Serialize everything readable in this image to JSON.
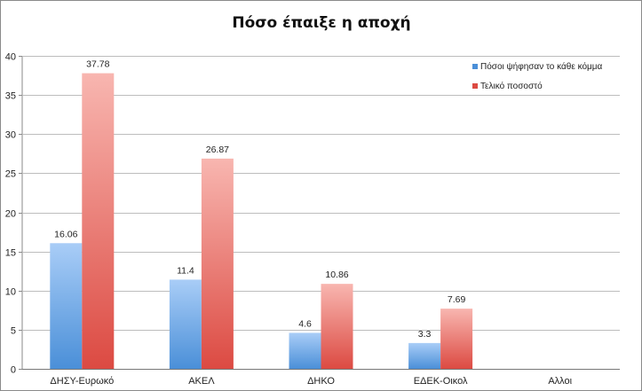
{
  "chart_data": {
    "type": "bar",
    "title": "Πόσο έπαιξε η αποχή",
    "categories": [
      "ΔΗΣΥ-Ευρωκό",
      "ΑΚΕΛ",
      "ΔΗΚΟ",
      "ΕΔΕΚ-Οικολ",
      "Αλλοι"
    ],
    "series": [
      {
        "name": "Πόσοι ψήφησαν το κάθε κόμμα",
        "values": [
          16.06,
          11.4,
          4.6,
          3.3,
          null
        ],
        "labels": [
          "16.06",
          "11.4",
          "4.6",
          "3.3",
          ""
        ],
        "color_light": "#a9cdf7",
        "color_dark": "#4a8fd8"
      },
      {
        "name": "Τελικό ποσοστό",
        "values": [
          37.78,
          26.87,
          10.86,
          7.69,
          null
        ],
        "labels": [
          "37.78",
          "26.87",
          "10.86",
          "7.69",
          ""
        ],
        "color_light": "#f8b6b0",
        "color_dark": "#dc4a42"
      }
    ],
    "ylim": [
      0,
      40
    ],
    "yticks": [
      0,
      5,
      10,
      15,
      20,
      25,
      30,
      35,
      40
    ],
    "grid": true,
    "legend_position": "top-right",
    "xlabel": "",
    "ylabel": ""
  }
}
